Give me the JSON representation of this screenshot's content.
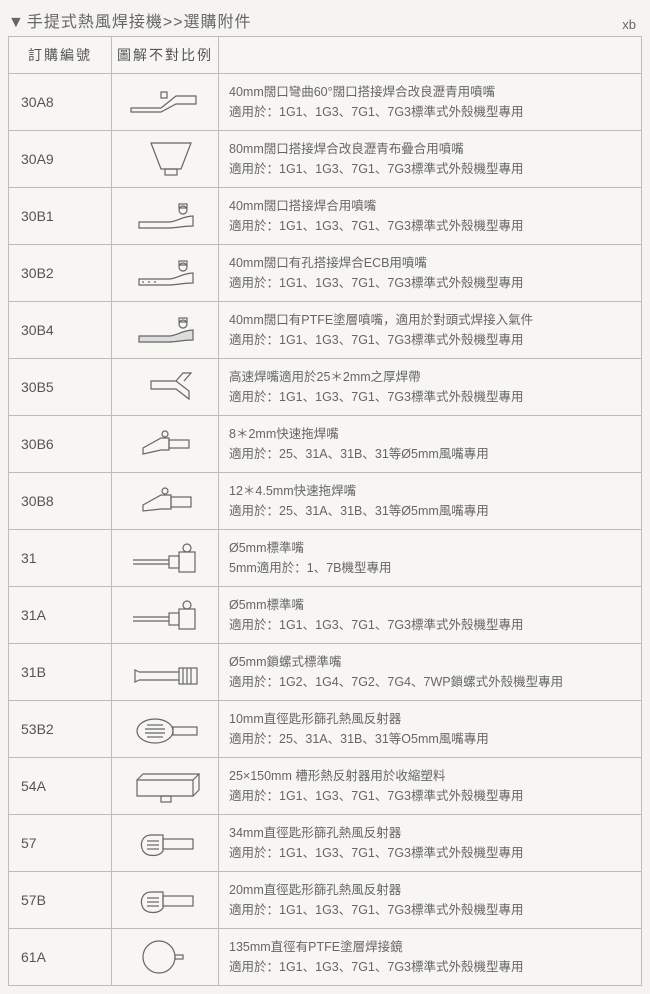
{
  "tag": "xb",
  "title_prefix": "▼",
  "title": "手提式熱風焊接機>>選購附件",
  "columns": [
    "訂購編號",
    "圖解不對比例",
    ""
  ],
  "rows": [
    {
      "code": "30A8",
      "icon": "wide-angled-nozzle",
      "line1": "40mm闊口彎曲60°闊口搭接焊合改良瀝青用噴嘴",
      "line2": "適用於：1G1、1G3、7G1、7G3標準式外殼機型專用"
    },
    {
      "code": "30A9",
      "icon": "wide-flat-nozzle",
      "line1": "80mm闊口搭接焊合改良瀝青布疊合用噴嘴",
      "line2": "適用於：1G1、1G3、7G1、7G3標準式外殼機型專用"
    },
    {
      "code": "30B1",
      "icon": "slot-nozzle",
      "line1": "40mm闊口搭接焊合用噴嘴",
      "line2": "適用於：1G1、1G3、7G1、7G3標準式外殼機型專用"
    },
    {
      "code": "30B2",
      "icon": "slot-nozzle-perf",
      "line1": "40mm闊口有孔搭接焊合ECB用噴嘴",
      "line2": "適用於：1G1、1G3、7G1、7G3標準式外殼機型專用"
    },
    {
      "code": "30B4",
      "icon": "slot-nozzle-ptfe",
      "line1": "40mm闊口有PTFE塗層噴嘴，適用於對頭式焊接入氣件",
      "line2": "適用於：1G1、1G3、7G1、7G3標準式外殼機型專用"
    },
    {
      "code": "30B5",
      "icon": "speed-weld-nozzle",
      "line1": "高速焊嘴適用於25＊2mm之厚焊帶",
      "line2": "適用於：1G1、1G3、7G1、7G3標準式外殼機型專用"
    },
    {
      "code": "30B6",
      "icon": "drag-nozzle-small",
      "line1": "8＊2mm快速拖焊嘴",
      "line2": "適用於：25、31A、31B、31等Ø5mm風嘴專用"
    },
    {
      "code": "30B8",
      "icon": "drag-nozzle-large",
      "line1": "12＊4.5mm快速拖焊嘴",
      "line2": "適用於：25、31A、31B、31等Ø5mm風嘴專用"
    },
    {
      "code": "31",
      "icon": "std-tube-nozzle",
      "line1": "Ø5mm標準嘴",
      "line2": "5mm適用於：1、7B機型專用"
    },
    {
      "code": "31A",
      "icon": "std-tube-nozzle",
      "line1": "Ø5mm標準嘴",
      "line2": "適用於：1G1、1G3、7G1、7G3標準式外殼機型專用"
    },
    {
      "code": "31B",
      "icon": "threaded-tube-nozzle",
      "line1": "Ø5mm鎖螺式標準嘴",
      "line2": "適用於：1G2、1G4、7G2、7G4、7WP鎖螺式外殼機型專用"
    },
    {
      "code": "53B2",
      "icon": "spoon-reflector",
      "line1": "10mm直徑匙形篩孔熱風反射器",
      "line2": "適用於：25、31A、31B、31等O5mm風嘴專用"
    },
    {
      "code": "54A",
      "icon": "channel-reflector",
      "line1": "25×150mm 槽形熱反射器用於收縮塑料",
      "line2": "適用於：1G1、1G3、7G1、7G3標準式外殼機型專用"
    },
    {
      "code": "57",
      "icon": "small-spoon-reflector",
      "line1": "34mm直徑匙形篩孔熱風反射器",
      "line2": "適用於：1G1、1G3、7G1、7G3標準式外殼機型專用"
    },
    {
      "code": "57B",
      "icon": "small-spoon-reflector",
      "line1": "20mm直徑匙形篩孔熱風反射器",
      "line2": "適用於：1G1、1G3、7G1、7G3標準式外殼機型專用"
    },
    {
      "code": "61A",
      "icon": "round-mirror",
      "line1": "135mm直徑有PTFE塗層焊接鏡",
      "line2": "適用於：1G1、1G3、7G1、7G3標準式外殼機型專用"
    }
  ]
}
